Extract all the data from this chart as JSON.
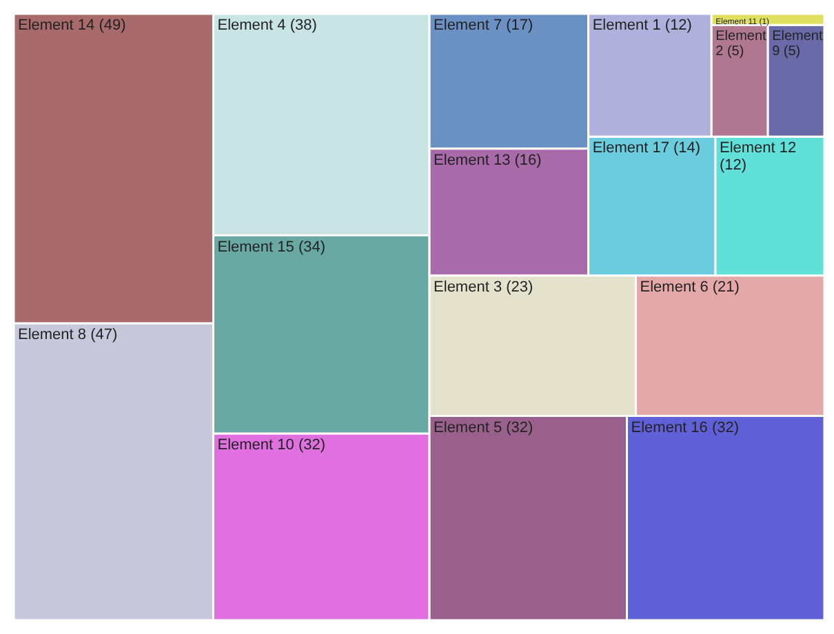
{
  "chart_data": {
    "type": "other",
    "categories": [
      "Element 14",
      "Element 8",
      "Element 4",
      "Element 15",
      "Element 10",
      "Element 5",
      "Element 16",
      "Element 3",
      "Element 6",
      "Element 7",
      "Element 13",
      "Element 17",
      "Element 12",
      "Element 1",
      "Element 2",
      "Element 9",
      "Element 11"
    ],
    "values": [
      49,
      47,
      38,
      34,
      32,
      32,
      32,
      23,
      21,
      17,
      16,
      14,
      12,
      12,
      5,
      5,
      1
    ],
    "value_labels": [
      "(49)",
      "(47)",
      "(38)",
      "(34)",
      "(32)",
      "(32)",
      "(32)",
      "(23)",
      "(21)",
      "(17)",
      "(16)",
      "(14)",
      "(12)",
      "(12)",
      "(5)",
      "(5)",
      "(1)"
    ],
    "colors": [
      "#a86a6a",
      "#c8c8dc",
      "#c8e4e4",
      "#6aa8a4",
      "#e070e0",
      "#98608a",
      "#6060d8",
      "#e4e2cc",
      "#e4a8a8",
      "#6a90c4",
      "#a86aa8",
      "#6accdc",
      "#60e0d8",
      "#b0b0dc",
      "#b07890",
      "#6a6aa8",
      "#e0e060"
    ]
  }
}
